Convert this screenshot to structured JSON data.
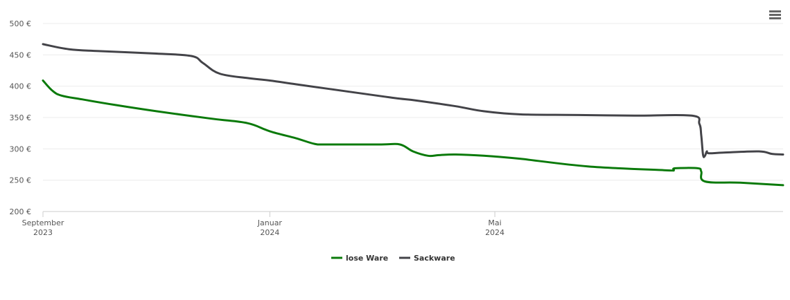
{
  "chart_data": {
    "type": "line",
    "title": "",
    "xlabel": "",
    "ylabel": "",
    "ylim": [
      200,
      500
    ],
    "yticks": [
      {
        "value": 200,
        "label": "200 €"
      },
      {
        "value": 250,
        "label": "250 €"
      },
      {
        "value": 300,
        "label": "300 €"
      },
      {
        "value": 350,
        "label": "350 €"
      },
      {
        "value": 400,
        "label": "400 €"
      },
      {
        "value": 450,
        "label": "450 €"
      },
      {
        "value": 500,
        "label": "500 €"
      }
    ],
    "xlim": [
      "2023-09-01",
      "2024-10-03"
    ],
    "xticks": [
      {
        "date": "2023-09-01",
        "line1": "September",
        "line2": "2023"
      },
      {
        "date": "2024-01-01",
        "line1": "Januar",
        "line2": "2024"
      },
      {
        "date": "2024-05-01",
        "line1": "Mai",
        "line2": "2024"
      }
    ],
    "grid": true,
    "legend_position": "bottom-center",
    "series": [
      {
        "name": "lose Ware",
        "color": "#0a7a0a",
        "points": [
          [
            "2023-09-01",
            409
          ],
          [
            "2023-09-06",
            393
          ],
          [
            "2023-09-11",
            385
          ],
          [
            "2023-09-22",
            379
          ],
          [
            "2023-10-10",
            370
          ],
          [
            "2023-11-01",
            360
          ],
          [
            "2023-12-01",
            348
          ],
          [
            "2023-12-20",
            341
          ],
          [
            "2024-01-01",
            328
          ],
          [
            "2024-01-15",
            317
          ],
          [
            "2024-01-25",
            308
          ],
          [
            "2024-02-01",
            307
          ],
          [
            "2024-03-01",
            307
          ],
          [
            "2024-03-11",
            307
          ],
          [
            "2024-03-18",
            296
          ],
          [
            "2024-03-26",
            289
          ],
          [
            "2024-04-01",
            290
          ],
          [
            "2024-04-10",
            291
          ],
          [
            "2024-04-25",
            289
          ],
          [
            "2024-05-15",
            284
          ],
          [
            "2024-06-20",
            272
          ],
          [
            "2024-07-31",
            266
          ],
          [
            "2024-08-05",
            266
          ],
          [
            "2024-08-06",
            269
          ],
          [
            "2024-08-18",
            269
          ],
          [
            "2024-08-20",
            264
          ],
          [
            "2024-08-22",
            248
          ],
          [
            "2024-09-10",
            246
          ],
          [
            "2024-10-03",
            242
          ]
        ]
      },
      {
        "name": "Sackware",
        "color": "#434348",
        "points": [
          [
            "2023-09-01",
            467
          ],
          [
            "2023-09-15",
            459
          ],
          [
            "2023-10-01",
            456
          ],
          [
            "2023-11-01",
            452
          ],
          [
            "2023-11-20",
            448
          ],
          [
            "2023-11-26",
            437
          ],
          [
            "2023-12-05",
            420
          ],
          [
            "2023-12-20",
            413
          ],
          [
            "2024-01-01",
            409
          ],
          [
            "2024-01-15",
            403
          ],
          [
            "2024-02-01",
            396
          ],
          [
            "2024-03-01",
            384
          ],
          [
            "2024-03-11",
            380
          ],
          [
            "2024-03-20",
            377
          ],
          [
            "2024-04-10",
            368
          ],
          [
            "2024-04-25",
            360
          ],
          [
            "2024-05-15",
            355
          ],
          [
            "2024-06-15",
            354
          ],
          [
            "2024-07-15",
            353
          ],
          [
            "2024-08-15",
            353
          ],
          [
            "2024-08-19",
            340
          ],
          [
            "2024-08-20",
            322
          ],
          [
            "2024-08-21",
            290
          ],
          [
            "2024-08-22",
            289
          ],
          [
            "2024-08-23",
            296
          ],
          [
            "2024-08-24",
            293
          ],
          [
            "2024-09-01",
            294
          ],
          [
            "2024-09-20",
            296
          ],
          [
            "2024-09-27",
            292
          ],
          [
            "2024-10-03",
            291
          ]
        ]
      }
    ]
  },
  "menu": {
    "icon": "hamburger-menu-icon"
  }
}
